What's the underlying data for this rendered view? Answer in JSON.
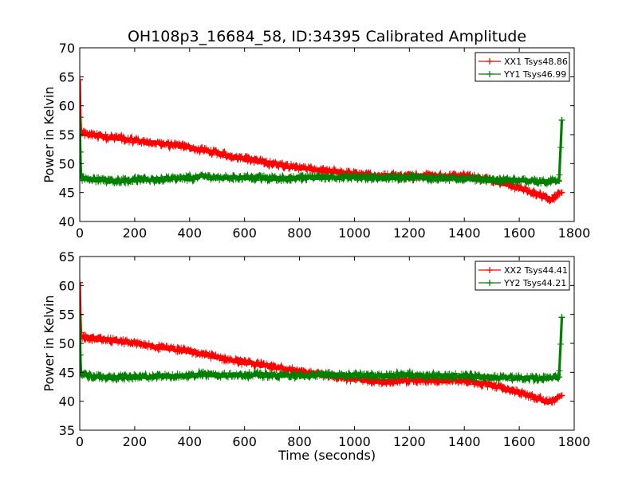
{
  "chart_data": [
    {
      "type": "line",
      "title": "OH108p3_16684_58, ID:34395 Calibrated Amplitude",
      "xlabel": "",
      "ylabel": "Power in Kelvin",
      "xlim": [
        0,
        1800
      ],
      "ylim": [
        40,
        70
      ],
      "xticks": [
        "0",
        "200",
        "400",
        "600",
        "800",
        "1000",
        "1200",
        "1400",
        "1600",
        "1800"
      ],
      "yticks": [
        "40",
        "45",
        "50",
        "55",
        "60",
        "65",
        "70"
      ],
      "legend_position": "top-right",
      "grid": false,
      "series": [
        {
          "name": "XX1 Tsys48.86",
          "color": "#ff0000",
          "x": [
            0,
            2,
            5,
            30,
            100,
            200,
            300,
            400,
            500,
            600,
            700,
            800,
            900,
            1000,
            1100,
            1200,
            1300,
            1400,
            1500,
            1600,
            1700,
            1720,
            1740,
            1755
          ],
          "y": [
            64.5,
            58.0,
            55.2,
            55.0,
            54.6,
            54.0,
            53.4,
            52.8,
            51.8,
            50.9,
            50.0,
            49.3,
            48.7,
            48.2,
            47.9,
            47.9,
            47.8,
            47.9,
            47.1,
            45.8,
            44.1,
            43.8,
            44.8,
            45.0
          ]
        },
        {
          "name": "YY1 Tsys46.99",
          "color": "#008000",
          "x": [
            0,
            2,
            5,
            50,
            100,
            200,
            300,
            400,
            450,
            500,
            600,
            700,
            800,
            900,
            1000,
            1100,
            1200,
            1300,
            1400,
            1500,
            1600,
            1700,
            1745,
            1755
          ],
          "y": [
            58.0,
            52.0,
            47.5,
            47.3,
            47.0,
            47.2,
            47.3,
            47.5,
            47.8,
            47.6,
            47.6,
            47.4,
            47.5,
            47.7,
            47.6,
            47.5,
            47.6,
            47.5,
            47.4,
            47.2,
            47.1,
            46.8,
            47.0,
            57.5
          ]
        }
      ]
    },
    {
      "type": "line",
      "title": "",
      "xlabel": "Time (seconds)",
      "ylabel": "Power in Kelvin",
      "xlim": [
        0,
        1800
      ],
      "ylim": [
        35,
        65
      ],
      "xticks": [
        "0",
        "200",
        "400",
        "600",
        "800",
        "1000",
        "1200",
        "1400",
        "1600",
        "1800"
      ],
      "yticks": [
        "35",
        "40",
        "45",
        "50",
        "55",
        "60",
        "65"
      ],
      "legend_position": "top-right",
      "grid": false,
      "series": [
        {
          "name": "XX2 Tsys44.41",
          "color": "#ff0000",
          "x": [
            0,
            2,
            5,
            30,
            100,
            200,
            300,
            400,
            500,
            600,
            700,
            800,
            900,
            1000,
            1100,
            1200,
            1300,
            1400,
            1500,
            1600,
            1700,
            1720,
            1740,
            1755
          ],
          "y": [
            60.5,
            55.0,
            51.2,
            51.0,
            50.6,
            50.0,
            49.3,
            48.6,
            47.6,
            46.7,
            45.9,
            45.2,
            44.5,
            43.8,
            43.4,
            43.6,
            43.6,
            43.6,
            42.8,
            41.5,
            40.0,
            39.8,
            40.7,
            41.0
          ]
        },
        {
          "name": "YY2 Tsys44.21",
          "color": "#008000",
          "x": [
            0,
            2,
            5,
            50,
            100,
            200,
            300,
            400,
            450,
            500,
            600,
            700,
            800,
            900,
            1000,
            1100,
            1200,
            1300,
            1400,
            1500,
            1600,
            1700,
            1745,
            1755
          ],
          "y": [
            55.0,
            48.0,
            44.6,
            44.3,
            44.1,
            44.2,
            44.3,
            44.4,
            44.7,
            44.5,
            44.6,
            44.5,
            44.4,
            44.6,
            44.5,
            44.4,
            44.6,
            44.4,
            44.4,
            44.1,
            44.0,
            43.9,
            44.2,
            54.5
          ]
        }
      ]
    }
  ]
}
